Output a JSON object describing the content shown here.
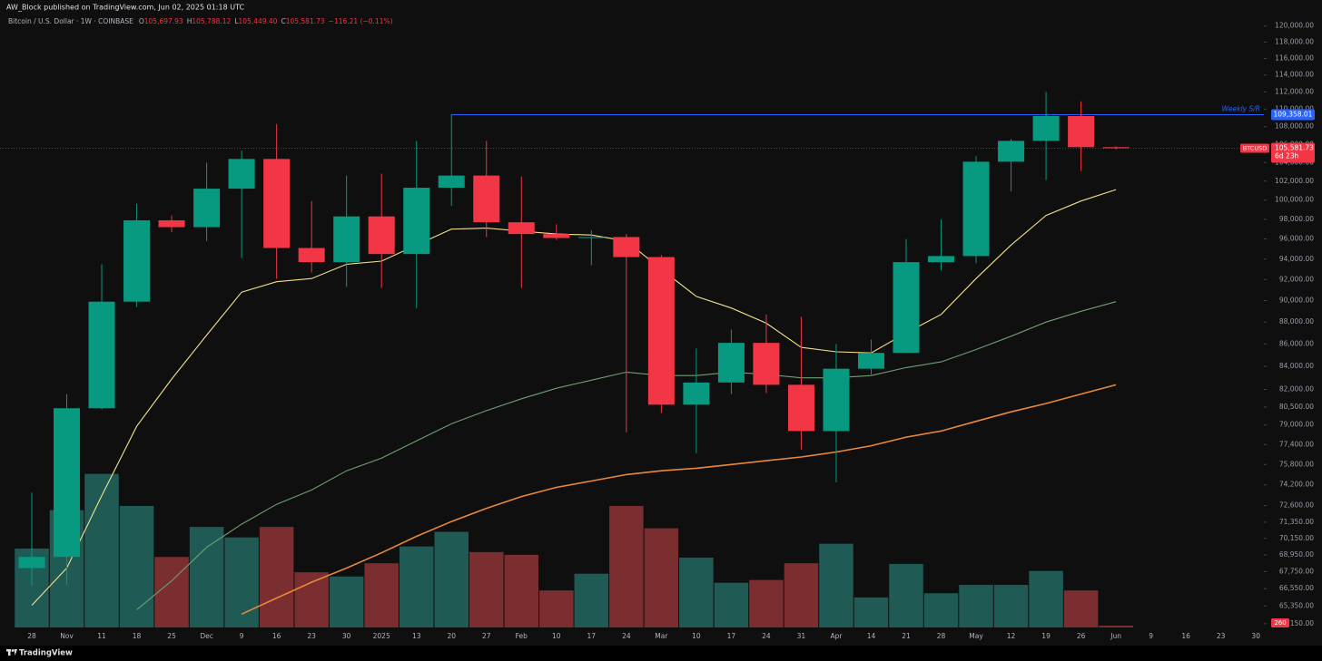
{
  "header": {
    "publisher": "AW_Block published on TradingView.com, Jun 02, 2025 01:18 UTC",
    "footer_logo": "TradingView"
  },
  "chart_data": {
    "type": "candlestick",
    "symbol": "Bitcoin / U.S. Dollar · 1W · COINBASE",
    "legend_values": [
      {
        "key": "O",
        "value": 105697.93,
        "label": "105,697.93"
      },
      {
        "key": "H",
        "value": 105788.12,
        "label": "105,788.12"
      },
      {
        "key": "L",
        "value": 105449.4,
        "label": "105,449.40"
      },
      {
        "key": "C",
        "value": 105581.73,
        "label": "105,581.73"
      }
    ],
    "change": {
      "value": -116.21,
      "label": "−116.21 (−0.11%)"
    },
    "categories": [
      "28",
      "Nov",
      "11",
      "18",
      "25",
      "Dec",
      "9",
      "16",
      "23",
      "30",
      "2025",
      "13",
      "20",
      "27",
      "Feb",
      "10",
      "17",
      "24",
      "Mar",
      "10",
      "17",
      "24",
      "31",
      "Apr",
      "14",
      "21",
      "28",
      "May",
      "12",
      "19",
      "26",
      "Jun",
      "9",
      "16",
      "23",
      "30"
    ],
    "open": [
      68000,
      68800,
      80400,
      89900,
      97900,
      97200,
      101200,
      104400,
      95100,
      93700,
      98300,
      94500,
      101300,
      102600,
      97700,
      96500,
      96100,
      96200,
      94200,
      80700,
      82600,
      86100,
      82400,
      78500,
      83800,
      85200,
      93700,
      94300,
      104100,
      106400,
      109200,
      105697.93,
      null,
      null,
      null,
      null
    ],
    "high": [
      73600,
      81600,
      93500,
      99600,
      98400,
      104000,
      105300,
      108300,
      99900,
      102600,
      102800,
      106400,
      109400,
      106400,
      102500,
      97500,
      96900,
      96500,
      94400,
      85600,
      87300,
      88700,
      88500,
      86000,
      86400,
      96000,
      98000,
      104700,
      106600,
      112000,
      110900,
      105788.12,
      null,
      null,
      null,
      null
    ],
    "low": [
      66800,
      66800,
      80300,
      89400,
      96700,
      95800,
      94100,
      92100,
      92700,
      91300,
      91200,
      89300,
      99400,
      96200,
      91200,
      95900,
      93400,
      78400,
      80000,
      76700,
      81600,
      81700,
      77000,
      74400,
      83300,
      85200,
      92900,
      93600,
      100900,
      102100,
      103100,
      105449.4,
      null,
      null,
      null,
      null
    ],
    "close": [
      68800,
      80400,
      89900,
      97900,
      97200,
      101200,
      104400,
      95100,
      93700,
      98300,
      94500,
      101300,
      102600,
      97700,
      96500,
      96100,
      96200,
      94200,
      80700,
      82600,
      86100,
      82400,
      78500,
      83800,
      85200,
      93700,
      94300,
      104100,
      106400,
      109200,
      105700,
      105581.73,
      null,
      null,
      null,
      null
    ],
    "colors": {
      "up": "#089981",
      "down": "#f23645",
      "volume_up": "#1f5a55",
      "volume_down": "#7a2e30"
    },
    "log_scale": true,
    "ylim": [
      63900,
      121000
    ],
    "yticks": [
      {
        "value": 120000,
        "label": "120,000.00"
      },
      {
        "value": 118000,
        "label": "118,000.00"
      },
      {
        "value": 116000,
        "label": "116,000.00"
      },
      {
        "value": 114000,
        "label": "114,000.00"
      },
      {
        "value": 112000,
        "label": "112,000.00"
      },
      {
        "value": 110000,
        "label": "110,000.00"
      },
      {
        "value": 108000,
        "label": "108,000.00"
      },
      {
        "value": 106000,
        "label": "106,000.00"
      },
      {
        "value": 104000,
        "label": "104,000.00"
      },
      {
        "value": 102000,
        "label": "102,000.00"
      },
      {
        "value": 100000,
        "label": "100,000.00"
      },
      {
        "value": 98000,
        "label": "98,000.00"
      },
      {
        "value": 96000,
        "label": "96,000.00"
      },
      {
        "value": 94000,
        "label": "94,000.00"
      },
      {
        "value": 92000,
        "label": "92,000.00"
      },
      {
        "value": 90000,
        "label": "90,000.00"
      },
      {
        "value": 88000,
        "label": "88,000.00"
      },
      {
        "value": 86000,
        "label": "86,000.00"
      },
      {
        "value": 84000,
        "label": "84,000.00"
      },
      {
        "value": 82000,
        "label": "82,000.00"
      },
      {
        "value": 80500,
        "label": "80,500.00"
      },
      {
        "value": 79000,
        "label": "79,000.00"
      },
      {
        "value": 77400,
        "label": "77,400.00"
      },
      {
        "value": 75800,
        "label": "75,800.00"
      },
      {
        "value": 74200,
        "label": "74,200.00"
      },
      {
        "value": 72600,
        "label": "72,600.00"
      },
      {
        "value": 71350,
        "label": "71,350.00"
      },
      {
        "value": 70150,
        "label": "70,150.00"
      },
      {
        "value": 68950,
        "label": "68,950.00"
      },
      {
        "value": 67750,
        "label": "67,750.00"
      },
      {
        "value": 66550,
        "label": "66,550.00"
      },
      {
        "value": 65350,
        "label": "65,350.00"
      },
      {
        "value": 64150,
        "label": "64,150.00"
      }
    ],
    "volume": {
      "ylim": [
        0,
        40000
      ],
      "values": [
        11300,
        16800,
        22000,
        17400,
        10100,
        14400,
        12900,
        14400,
        7900,
        7300,
        9200,
        11600,
        13700,
        10800,
        10400,
        5300,
        7700,
        17400,
        14200,
        10000,
        6400,
        6800,
        9200,
        12000,
        4300,
        9100,
        4900,
        6100,
        6100,
        8100,
        5300,
        260,
        null,
        null,
        null,
        null
      ]
    },
    "moving_averages": [
      {
        "color": "#f3e08a",
        "values": [
          65400,
          68000,
          73350,
          78900,
          82900,
          86800,
          90800,
          91800,
          92100,
          93500,
          93800,
          95400,
          97000,
          97100,
          96800,
          96500,
          96400,
          95800,
          93000,
          90400,
          89300,
          87900,
          85700,
          85300,
          85200,
          87000,
          88700,
          92100,
          95400,
          98400,
          99900,
          101100,
          null,
          null,
          null,
          null
        ]
      },
      {
        "color": "#6f9f74",
        "values": [
          null,
          null,
          null,
          65100,
          67100,
          69500,
          71200,
          72700,
          73800,
          75300,
          76300,
          77700,
          79100,
          80200,
          81200,
          82100,
          82800,
          83500,
          83200,
          83200,
          83500,
          83300,
          83000,
          83000,
          83200,
          83900,
          84400,
          85500,
          86700,
          88000,
          89000,
          89900,
          null,
          null,
          null,
          null
        ]
      },
      {
        "color": "#e8893a",
        "values": [
          null,
          null,
          null,
          null,
          null,
          null,
          64800,
          65900,
          67000,
          68000,
          69100,
          70300,
          71400,
          72400,
          73300,
          74000,
          74500,
          75000,
          75300,
          75500,
          75800,
          76100,
          76400,
          76800,
          77300,
          78000,
          78500,
          79300,
          80100,
          80800,
          81600,
          82400,
          null,
          null,
          null,
          null
        ]
      }
    ],
    "support_resistance": {
      "text": "Weekly S/R",
      "value": 109358.01,
      "label": "109,358.01",
      "start_index": 12,
      "color": "#2962ff"
    },
    "last_price": {
      "symbol": "BTCUSD",
      "value": 105581.73,
      "label": "105,581.73",
      "countdown": "6d 23h"
    }
  }
}
